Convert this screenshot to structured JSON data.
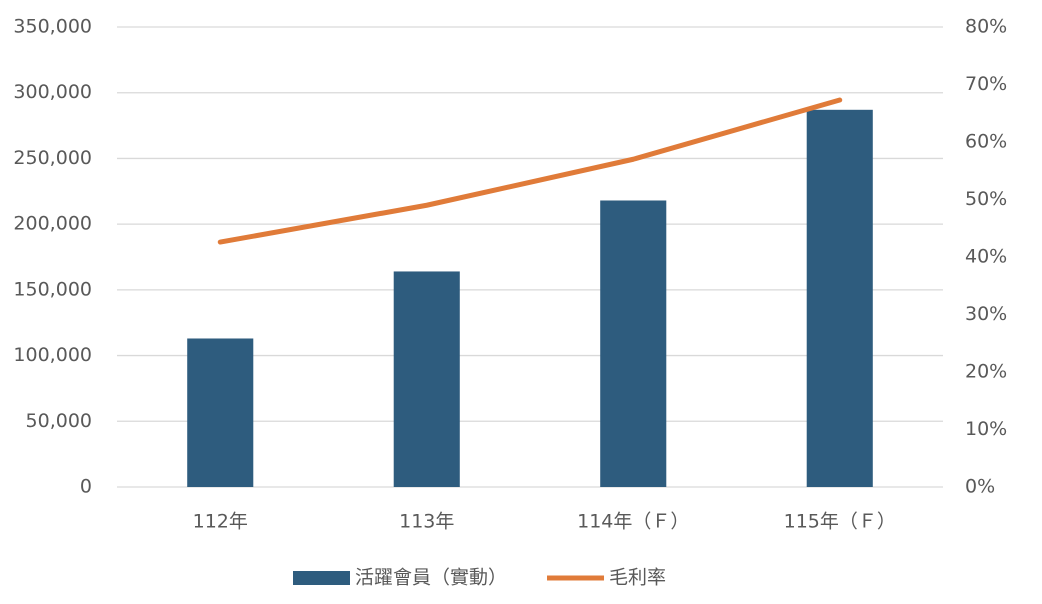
{
  "chart_data": {
    "type": "bar",
    "categories": [
      "112年",
      "113年",
      "114年（Ｆ）",
      "115年（Ｆ）"
    ],
    "series": [
      {
        "name": "活躍會員（實動）",
        "type": "bar",
        "color": "#2e5c7e",
        "values": [
          113000,
          164000,
          218000,
          287000
        ]
      },
      {
        "name": "毛利率",
        "type": "line",
        "color": "#e07b39",
        "axis": "y2",
        "values": [
          42.6,
          49,
          57,
          67.3
        ]
      }
    ],
    "ylim": [
      0,
      350000
    ],
    "yticks": [
      0,
      {
        "value": 50000,
        "label": "50,000"
      },
      {
        "value": 100000,
        "label": "100,000"
      },
      {
        "value": 150000,
        "label": "150,000"
      },
      {
        "value": 200000,
        "label": "200,000"
      },
      {
        "value": 250000,
        "label": "250,000"
      },
      {
        "value": 300000,
        "label": "300,000"
      },
      {
        "value": 350000,
        "label": "350,000"
      }
    ],
    "y2lim": [
      0,
      80
    ],
    "y2ticks": [
      {
        "value": 0,
        "label": "0%"
      },
      {
        "value": 10,
        "label": "10%"
      },
      {
        "value": 20,
        "label": "20%"
      },
      {
        "value": 30,
        "label": "30%"
      },
      {
        "value": 40,
        "label": "40%"
      },
      {
        "value": 50,
        "label": "50%"
      },
      {
        "value": 60,
        "label": "60%"
      },
      {
        "value": 70,
        "label": "70%"
      },
      {
        "value": 80,
        "label": "80%"
      }
    ],
    "grid": true,
    "legend": "bottom"
  }
}
